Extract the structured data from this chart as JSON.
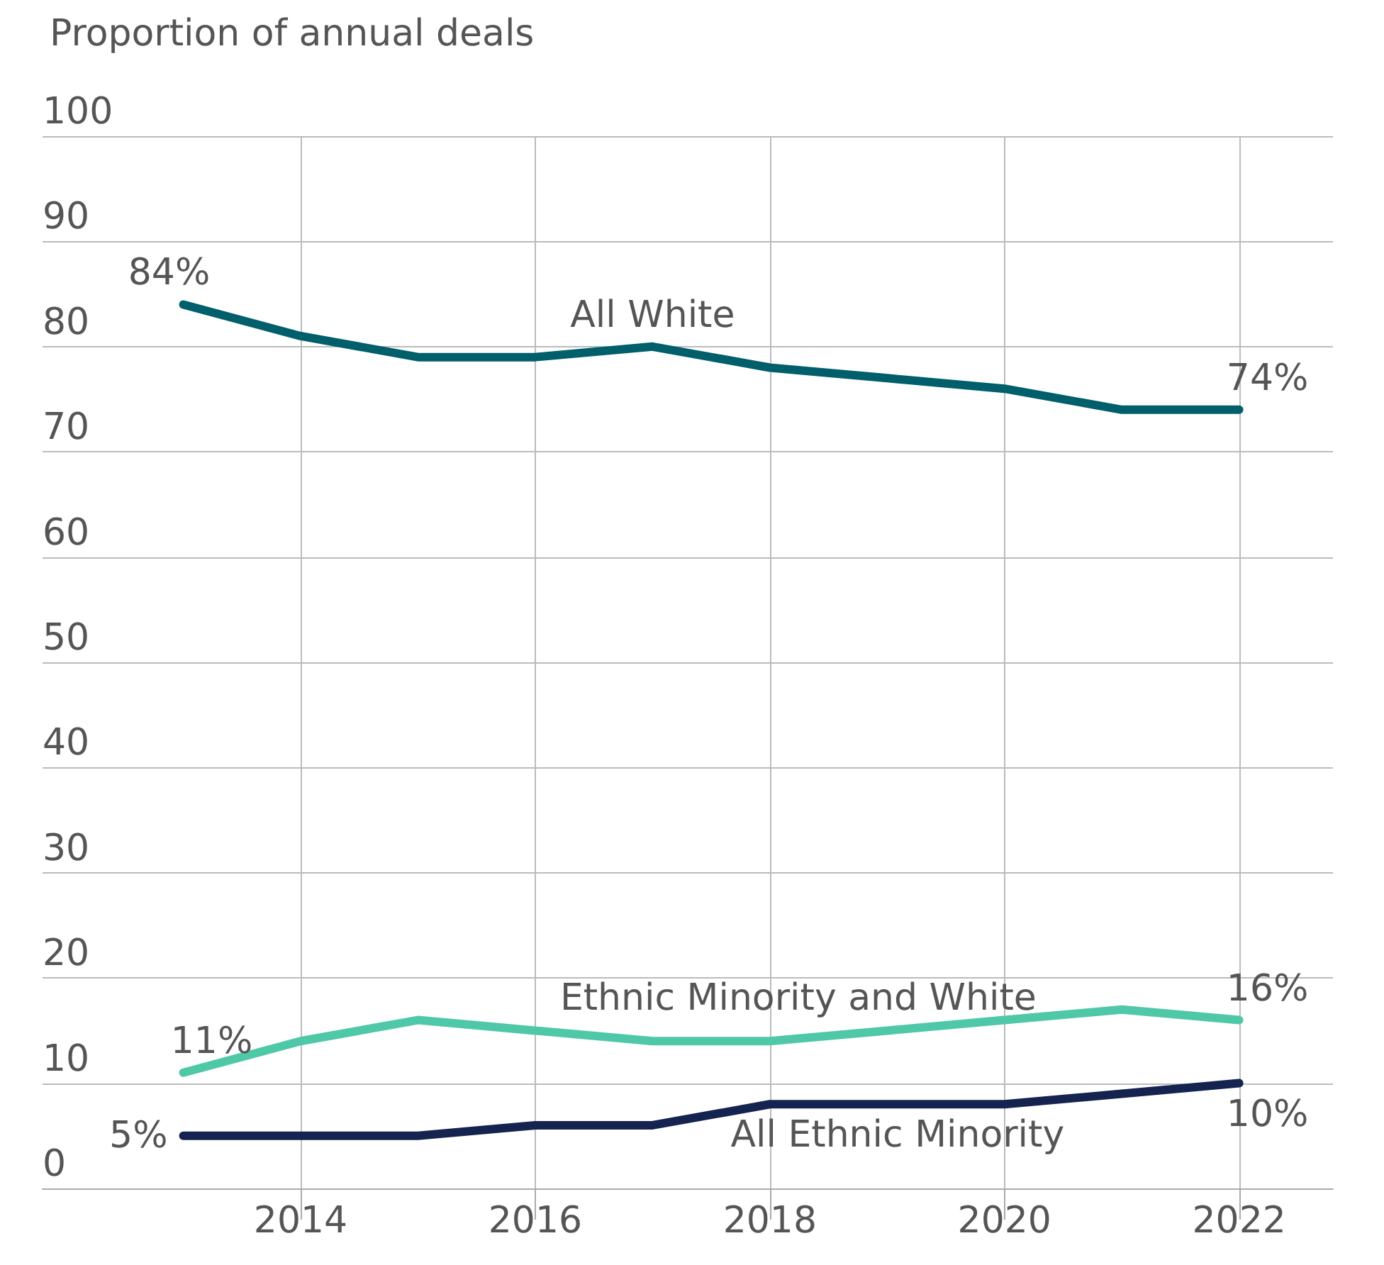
{
  "chart_data": {
    "type": "line",
    "ylabel": "Proportion of annual deals",
    "x": [
      2013,
      2014,
      2015,
      2016,
      2017,
      2018,
      2019,
      2020,
      2021,
      2022
    ],
    "series": [
      {
        "name": "All White",
        "color": "#005f6b",
        "values": [
          84,
          81,
          79,
          79,
          80,
          78,
          77,
          76,
          74,
          74
        ],
        "value_labels": [
          "84%",
          null,
          null,
          null,
          null,
          null,
          null,
          null,
          null,
          "74%"
        ]
      },
      {
        "name": "Ethnic Minority and White",
        "color": "#4fc8a8",
        "values": [
          11,
          14,
          16,
          15,
          14,
          14,
          15,
          16,
          17,
          16
        ],
        "value_labels": [
          "11%",
          null,
          null,
          null,
          null,
          null,
          null,
          null,
          null,
          "16%"
        ]
      },
      {
        "name": "All Ethnic Minority",
        "color": "#14234f",
        "values": [
          5,
          5,
          5,
          6,
          6,
          8,
          8,
          8,
          9,
          10
        ],
        "value_labels": [
          "5%",
          null,
          null,
          null,
          null,
          null,
          null,
          null,
          null,
          "10%"
        ]
      }
    ],
    "xlim": [
      2011.8,
      2022.8
    ],
    "xticks": [
      2014,
      2016,
      2018,
      2020,
      2022
    ],
    "ylim": [
      0,
      100
    ],
    "yticks": [
      0,
      10,
      20,
      30,
      40,
      50,
      60,
      70,
      80,
      90,
      100
    ],
    "grid": true,
    "legend": false,
    "line_style": "solid"
  }
}
